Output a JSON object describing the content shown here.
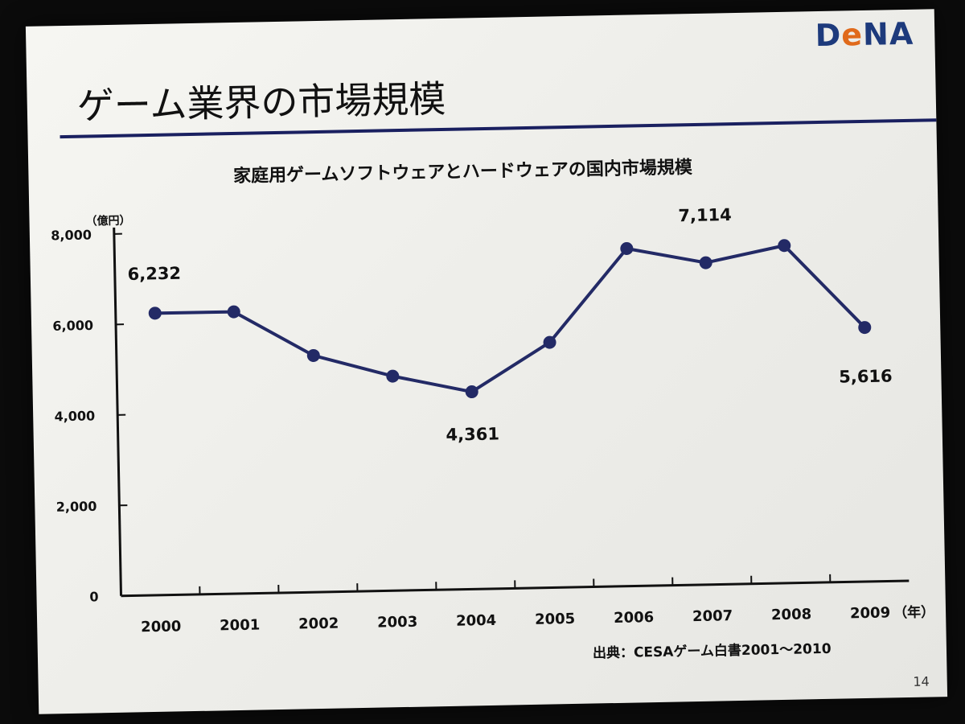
{
  "slide": {
    "logo": {
      "text_main": "D",
      "text_accent": "e",
      "text_rest": "NA"
    },
    "title": "ゲーム業界の市場規模",
    "source": "出典：CESAゲーム白書2001～2010",
    "page_number": "14"
  },
  "chart_data": {
    "type": "line",
    "title": "家庭用ゲームソフトウェアとハードウェアの国内市場規模",
    "y_unit": "（億円）",
    "x_unit": "（年）",
    "categories": [
      "2000",
      "2001",
      "2002",
      "2003",
      "2004",
      "2005",
      "2006",
      "2007",
      "2008",
      "2009"
    ],
    "series": [
      {
        "values": [
          6232,
          6230,
          5230,
          4740,
          4361,
          5420,
          7460,
          7114,
          7460,
          5616
        ]
      }
    ],
    "ylim": [
      0,
      8000
    ],
    "y_ticks": [
      "0",
      "2,000",
      "4,000",
      "6,000",
      "8,000"
    ],
    "y_tick_values": [
      0,
      2000,
      4000,
      6000,
      8000
    ],
    "annotations": [
      {
        "index": 0,
        "text": "6,232"
      },
      {
        "index": 4,
        "text": "4,361"
      },
      {
        "index": 7,
        "text": "7,114"
      },
      {
        "index": 9,
        "text": "5,616"
      }
    ],
    "line_color": "#232a66",
    "grid": false
  }
}
